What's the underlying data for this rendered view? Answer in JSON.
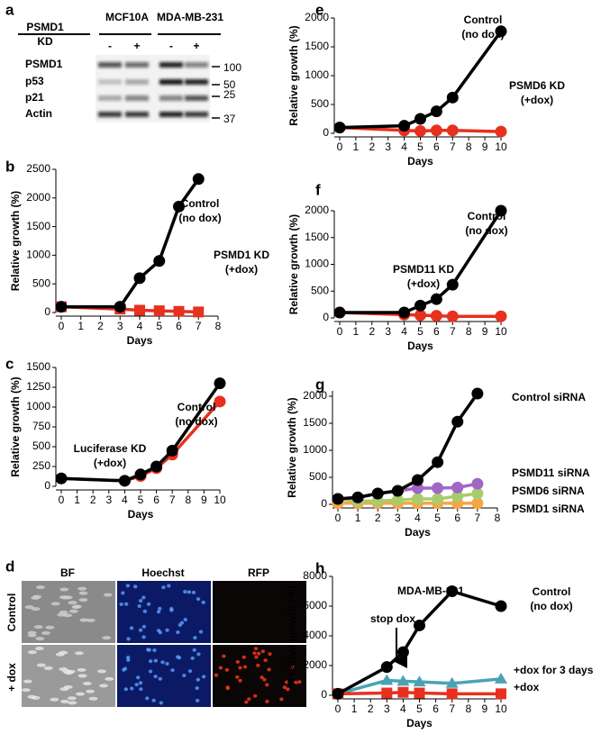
{
  "blot": {
    "panel_label": "a",
    "header": [
      "PSMD1",
      "KD"
    ],
    "cell_lines": [
      "MCF10A",
      "MDA-MB-231"
    ],
    "lanes": [
      "-",
      "+",
      "-",
      "+"
    ],
    "rows": [
      "PSMD1",
      "p53",
      "p21",
      "Actin"
    ],
    "markers": [
      "100",
      "50",
      "25",
      "37"
    ]
  },
  "images": {
    "panel_label": "d",
    "columns": [
      "BF",
      "Hoechst",
      "RFP"
    ],
    "rows": [
      "Control",
      "+ dox"
    ]
  },
  "chart_data": [
    {
      "type": "line",
      "panel_label": "b",
      "y_label": "Relative growth (%)",
      "x_label": "Days",
      "xlim": [
        0,
        8
      ],
      "xticks": [
        0,
        1,
        2,
        3,
        4,
        5,
        6,
        7,
        8
      ],
      "ylim": [
        0,
        2500
      ],
      "yticks": [
        0,
        500,
        1000,
        1500,
        2000,
        2500
      ],
      "series": [
        {
          "color": "#000000",
          "marker": "circle",
          "x": [
            0,
            3,
            4,
            5,
            6,
            7
          ],
          "values": [
            100,
            100,
            600,
            900,
            1850,
            2330
          ]
        },
        {
          "color": "#e8301f",
          "marker": "square",
          "x": [
            0,
            3,
            4,
            5,
            6,
            7
          ],
          "values": [
            100,
            60,
            40,
            30,
            20,
            10
          ]
        }
      ],
      "annotations": [
        [
          "Control",
          "(no dox)"
        ],
        [
          "PSMD1 KD",
          "(+dox)"
        ]
      ]
    },
    {
      "type": "line",
      "panel_label": "c",
      "y_label": "Relative growth (%)",
      "x_label": "Days",
      "xlim": [
        0,
        10
      ],
      "xticks": [
        0,
        1,
        2,
        3,
        4,
        5,
        6,
        7,
        8,
        9,
        10
      ],
      "ylim": [
        0,
        1500
      ],
      "yticks": [
        0,
        250,
        500,
        750,
        1000,
        1250,
        1500
      ],
      "series": [
        {
          "color": "#000000",
          "marker": "circle",
          "x": [
            0,
            4,
            5,
            6,
            7,
            10
          ],
          "values": [
            100,
            70,
            150,
            250,
            450,
            1300
          ]
        },
        {
          "color": "#e8301f",
          "marker": "circle",
          "x": [
            0,
            4,
            5,
            6,
            7,
            10
          ],
          "values": [
            100,
            70,
            130,
            230,
            400,
            1070
          ]
        }
      ],
      "annotations": [
        [
          "Control",
          "(no dox)"
        ],
        [
          "Luciferase KD",
          "(+dox)"
        ]
      ]
    },
    {
      "type": "line",
      "panel_label": "e",
      "y_label": "Relative growth (%)",
      "x_label": "Days",
      "xlim": [
        0,
        10
      ],
      "xticks": [
        0,
        1,
        2,
        3,
        4,
        5,
        6,
        7,
        8,
        9,
        10
      ],
      "ylim": [
        0,
        2000
      ],
      "yticks": [
        0,
        500,
        1000,
        1500,
        2000
      ],
      "series": [
        {
          "color": "#000000",
          "marker": "circle",
          "x": [
            0,
            4,
            5,
            6,
            7,
            10
          ],
          "values": [
            100,
            130,
            250,
            380,
            620,
            1770
          ]
        },
        {
          "color": "#e8301f",
          "marker": "circle",
          "x": [
            0,
            4,
            5,
            6,
            7,
            10
          ],
          "values": [
            100,
            50,
            40,
            50,
            50,
            30
          ]
        }
      ],
      "annotations": [
        [
          "Control",
          "(no dox)"
        ],
        [
          "PSMD6 KD",
          "(+dox)"
        ]
      ]
    },
    {
      "type": "line",
      "panel_label": "f",
      "y_label": "Relative growth (%)",
      "x_label": "Days",
      "xlim": [
        0,
        10
      ],
      "xticks": [
        0,
        1,
        2,
        3,
        4,
        5,
        6,
        7,
        8,
        9,
        10
      ],
      "ylim": [
        0,
        2000
      ],
      "yticks": [
        0,
        500,
        1000,
        1500,
        2000
      ],
      "series": [
        {
          "color": "#000000",
          "marker": "circle",
          "x": [
            0,
            4,
            5,
            6,
            7,
            10
          ],
          "values": [
            100,
            100,
            230,
            350,
            620,
            2000
          ]
        },
        {
          "color": "#e8301f",
          "marker": "circle",
          "x": [
            0,
            4,
            5,
            6,
            7,
            10
          ],
          "values": [
            100,
            60,
            50,
            40,
            30,
            30
          ]
        }
      ],
      "annotations": [
        [
          "Control",
          "(no dox)"
        ],
        [
          "PSMD11 KD",
          "(+dox)"
        ]
      ]
    },
    {
      "type": "line",
      "panel_label": "g",
      "y_label": "Relative growth (%)",
      "x_label": "Days",
      "xlim": [
        0,
        8
      ],
      "xticks": [
        0,
        1,
        2,
        3,
        4,
        5,
        6,
        7,
        8
      ],
      "ylim": [
        0,
        2100
      ],
      "yticks": [
        0,
        500,
        1000,
        1500,
        2000
      ],
      "series": [
        {
          "color": "#000000",
          "marker": "circle",
          "x": [
            0,
            1,
            2,
            3,
            4,
            5,
            6,
            7
          ],
          "values": [
            100,
            130,
            200,
            250,
            450,
            780,
            1530,
            2050
          ]
        },
        {
          "color": "#a066c8",
          "marker": "circle",
          "x": [
            0,
            1,
            2,
            3,
            4,
            5,
            6,
            7
          ],
          "values": [
            100,
            120,
            200,
            250,
            300,
            300,
            310,
            380
          ]
        },
        {
          "color": "#a8cc6a",
          "marker": "circle",
          "x": [
            0,
            1,
            2,
            3,
            4,
            5,
            6,
            7
          ],
          "values": [
            100,
            60,
            60,
            80,
            100,
            100,
            150,
            200
          ]
        },
        {
          "color": "#f5a645",
          "marker": "circle",
          "x": [
            0,
            1,
            2,
            3,
            4,
            5,
            6,
            7
          ],
          "values": [
            20,
            20,
            20,
            20,
            20,
            20,
            20,
            20
          ]
        }
      ],
      "annotations": [
        [
          "Control siRNA"
        ],
        [
          "PSMD11 siRNA"
        ],
        [
          "PSMD6 siRNA"
        ],
        [
          "PSMD1 siRNA"
        ]
      ]
    },
    {
      "type": "line",
      "panel_label": "h",
      "y_label": "Relative growth (%)",
      "x_label": "Days",
      "xlim": [
        0,
        10
      ],
      "xticks": [
        0,
        1,
        2,
        3,
        4,
        5,
        6,
        7,
        8,
        9,
        10
      ],
      "ylim": [
        0,
        8000
      ],
      "yticks": [
        0,
        2000,
        4000,
        6000,
        8000
      ],
      "series": [
        {
          "color": "#000000",
          "marker": "circle",
          "x": [
            0,
            3,
            4,
            5,
            7,
            10
          ],
          "values": [
            100,
            1900,
            2900,
            4700,
            7000,
            6000
          ]
        },
        {
          "color": "#e8301f",
          "marker": "square",
          "x": [
            0,
            3,
            4,
            5,
            7,
            10
          ],
          "values": [
            100,
            150,
            200,
            150,
            100,
            100
          ]
        },
        {
          "color": "#4aa3b5",
          "marker": "triangle",
          "x": [
            0,
            3,
            4,
            5,
            7,
            10
          ],
          "values": [
            100,
            1000,
            950,
            900,
            800,
            1100
          ]
        }
      ],
      "annotations": [
        [
          "MDA-MB-231"
        ],
        [
          "Control",
          "(no dox)"
        ],
        [
          "stop dox"
        ],
        [
          "+dox for 3 days"
        ],
        [
          "+dox"
        ]
      ]
    }
  ]
}
